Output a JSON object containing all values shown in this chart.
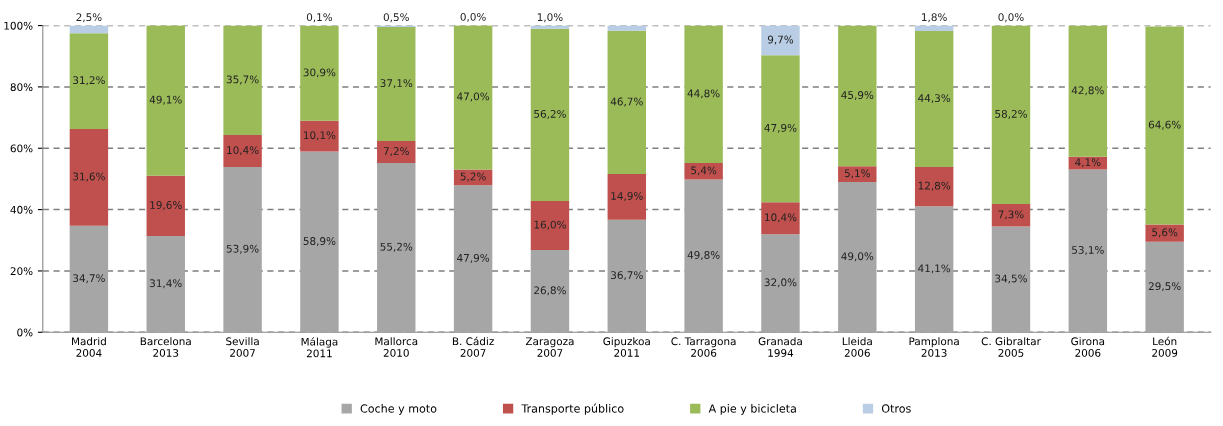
{
  "chart_data": {
    "type": "bar",
    "stacked": true,
    "categories": [
      "Madrid\n2004",
      "Barcelona\n2013",
      "Sevilla\n2007",
      "Málaga\n2011",
      "Mallorca\n2010",
      "B. Cádiz\n2007",
      "Zaragoza\n2007",
      "Gipuzkoa\n2011",
      "C. Tarragona\n2006",
      "Granada\n1994",
      "Lleida\n2006",
      "Pamplona\n2013",
      "C. Gibraltar\n2005",
      "Girona\n2006",
      "León\n2009"
    ],
    "series": [
      {
        "name": "Coche y moto",
        "color": "#a6a6a6",
        "values": [
          34.7,
          31.4,
          53.9,
          58.9,
          55.2,
          47.9,
          26.8,
          36.7,
          49.8,
          32.0,
          49.0,
          41.1,
          34.5,
          53.1,
          29.5
        ],
        "value_labels": [
          "34,7%",
          "31,4%",
          "53,9%",
          "58,9%",
          "55,2%",
          "47,9%",
          "26,8%",
          "36,7%",
          "49,8%",
          "32,0%",
          "49,0%",
          "41,1%",
          "34,5%",
          "53,1%",
          "29,5%"
        ]
      },
      {
        "name": "Transporte público",
        "color": "#c0504d",
        "values": [
          31.6,
          19.6,
          10.4,
          10.1,
          7.2,
          5.2,
          16.0,
          14.9,
          5.4,
          10.4,
          5.1,
          12.8,
          7.3,
          4.1,
          5.6
        ],
        "value_labels": [
          "31,6%",
          "19,6%",
          "10,4%",
          "10,1%",
          "7,2%",
          "5,2%",
          "16,0%",
          "14,9%",
          "5,4%",
          "10,4%",
          "5,1%",
          "12,8%",
          "7,3%",
          "4,1%",
          "5,6%"
        ]
      },
      {
        "name": "A pie y bicicleta",
        "color": "#9bbb59",
        "values": [
          31.2,
          49.1,
          35.7,
          30.9,
          37.1,
          47.0,
          56.2,
          46.7,
          44.8,
          47.9,
          45.9,
          44.3,
          58.2,
          42.8,
          64.6
        ],
        "value_labels": [
          "31,2%",
          "49,1%",
          "35,7%",
          "30,9%",
          "37,1%",
          "47,0%",
          "56,2%",
          "46,7%",
          "44,8%",
          "47,9%",
          "45,9%",
          "44,3%",
          "58,2%",
          "42,8%",
          "64,6%"
        ]
      },
      {
        "name": "Otros",
        "color": "#b9cde5",
        "values": [
          2.5,
          null,
          null,
          0.1,
          0.5,
          0.0,
          1.0,
          1.7,
          null,
          9.7,
          null,
          1.8,
          0.0,
          null,
          null
        ],
        "value_labels": [
          "2,5%",
          null,
          null,
          "0,1%",
          "0,5%",
          "0,0%",
          "1,0%",
          null,
          null,
          "9,7%",
          null,
          "1,8%",
          "0,0%",
          null,
          null
        ]
      }
    ],
    "ylim": [
      0,
      100
    ],
    "yticks": [
      {
        "value": 0,
        "label": "0%"
      },
      {
        "value": 20,
        "label": "20%"
      },
      {
        "value": 40,
        "label": "40%"
      },
      {
        "value": 60,
        "label": "60%"
      },
      {
        "value": 80,
        "label": "80%"
      },
      {
        "value": 100,
        "label": "100%"
      }
    ],
    "grid": "y",
    "legend": "bottom"
  }
}
